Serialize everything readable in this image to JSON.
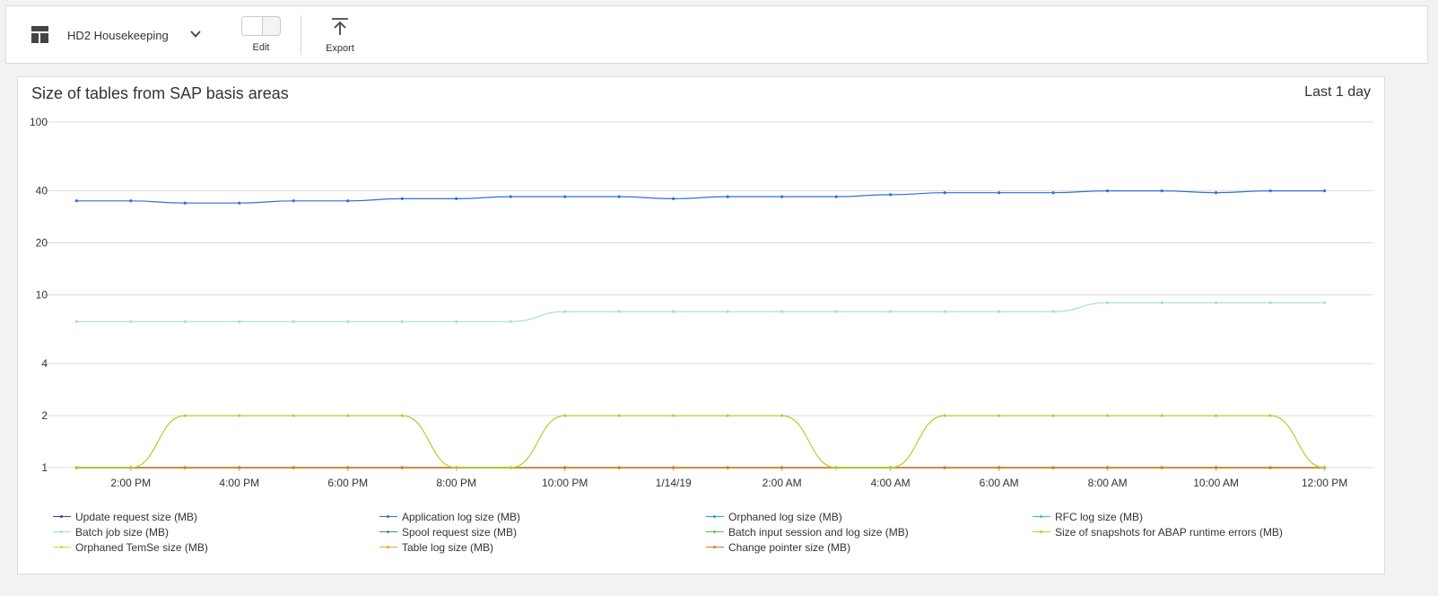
{
  "toolbar": {
    "dashboard_name": "HD2 Housekeeping",
    "edit_label": "Edit",
    "export_label": "Export"
  },
  "card": {
    "title": "Size of tables from SAP basis areas",
    "timeframe": "Last 1 day"
  },
  "chart_data": {
    "type": "line",
    "title": "Size of tables from SAP basis areas",
    "y_scale": "log",
    "ylim": [
      1,
      100
    ],
    "y_ticks": [
      "100",
      "40",
      "20",
      "10",
      "4",
      "2",
      "1"
    ],
    "y_tick_values": [
      100,
      40,
      20,
      10,
      4,
      2,
      1
    ],
    "x_tick_labels": [
      "2:00 PM",
      "4:00 PM",
      "6:00 PM",
      "8:00 PM",
      "10:00 PM",
      "1/14/19",
      "2:00 AM",
      "4:00 AM",
      "6:00 AM",
      "8:00 AM",
      "10:00 AM",
      "12:00 PM"
    ],
    "x_tick_hours": [
      14,
      16,
      18,
      20,
      22,
      24,
      26,
      28,
      30,
      32,
      34,
      36
    ],
    "x_hours": [
      13,
      14,
      15,
      16,
      17,
      18,
      19,
      20,
      21,
      22,
      23,
      24,
      25,
      26,
      27,
      28,
      29,
      30,
      31,
      32,
      33,
      34,
      35,
      36
    ],
    "grid": true,
    "legend_position": "bottom",
    "series": [
      {
        "name": "Update request size (MB)",
        "color": "#3a3ab0",
        "values": [
          1,
          1,
          1,
          1,
          1,
          1,
          1,
          1,
          1,
          1,
          1,
          1,
          1,
          1,
          1,
          1,
          1,
          1,
          1,
          1,
          1,
          1,
          1,
          1
        ]
      },
      {
        "name": "Application log size (MB)",
        "color": "#2f6fdb",
        "values": [
          35,
          35,
          34,
          34,
          35,
          35,
          36,
          36,
          37,
          37,
          37,
          36,
          37,
          37,
          37,
          38,
          39,
          39,
          39,
          40,
          40,
          39,
          40,
          40
        ]
      },
      {
        "name": "Orphaned log size (MB)",
        "color": "#2ca3d6",
        "values": [
          1,
          1,
          1,
          1,
          1,
          1,
          1,
          1,
          1,
          1,
          1,
          1,
          1,
          1,
          1,
          1,
          1,
          1,
          1,
          1,
          1,
          1,
          1,
          1
        ]
      },
      {
        "name": "RFC log size (MB)",
        "color": "#35c2c9",
        "values": [
          1,
          1,
          1,
          1,
          1,
          1,
          1,
          1,
          1,
          1,
          1,
          1,
          1,
          1,
          1,
          1,
          1,
          1,
          1,
          1,
          1,
          1,
          1,
          1
        ]
      },
      {
        "name": "Batch job size (MB)",
        "color": "#a8dcd8",
        "values": [
          7,
          7,
          7,
          7,
          7,
          7,
          7,
          7,
          7,
          8,
          8,
          8,
          8,
          8,
          8,
          8,
          8,
          8,
          8,
          9,
          9,
          9,
          9,
          9
        ]
      },
      {
        "name": "Spool request size (MB)",
        "color": "#3c9a5a",
        "values": [
          1,
          1,
          1,
          1,
          1,
          1,
          1,
          1,
          1,
          1,
          1,
          1,
          1,
          1,
          1,
          1,
          1,
          1,
          1,
          1,
          1,
          1,
          1,
          1
        ]
      },
      {
        "name": "Batch input session and log size (MB)",
        "color": "#6cbf4a",
        "values": [
          1,
          1,
          1,
          1,
          1,
          1,
          1,
          1,
          1,
          1,
          1,
          1,
          1,
          1,
          1,
          1,
          1,
          1,
          1,
          1,
          1,
          1,
          1,
          1
        ]
      },
      {
        "name": "Size of snapshots for ABAP runtime errors (MB)",
        "color": "#b5cc2e",
        "values": [
          1,
          1,
          2,
          2,
          2,
          2,
          2,
          1,
          1,
          2,
          2,
          2,
          2,
          2,
          1,
          1,
          2,
          2,
          2,
          2,
          2,
          2,
          2,
          1
        ]
      },
      {
        "name": "Orphaned TemSe size (MB)",
        "color": "#e6d62e",
        "values": [
          1,
          1,
          1,
          1,
          1,
          1,
          1,
          1,
          1,
          1,
          1,
          1,
          1,
          1,
          1,
          1,
          1,
          1,
          1,
          1,
          1,
          1,
          1,
          1
        ]
      },
      {
        "name": "Table log size (MB)",
        "color": "#f0a42a",
        "values": [
          1,
          1,
          1,
          1,
          1,
          1,
          1,
          1,
          1,
          1,
          1,
          1,
          1,
          1,
          1,
          1,
          1,
          1,
          1,
          1,
          1,
          1,
          1,
          1
        ]
      },
      {
        "name": "Change pointer size (MB)",
        "color": "#e8722a",
        "values": [
          1,
          1,
          1,
          1,
          1,
          1,
          1,
          1,
          1,
          1,
          1,
          1,
          1,
          1,
          1,
          1,
          1,
          1,
          1,
          1,
          1,
          1,
          1,
          1
        ]
      }
    ]
  }
}
